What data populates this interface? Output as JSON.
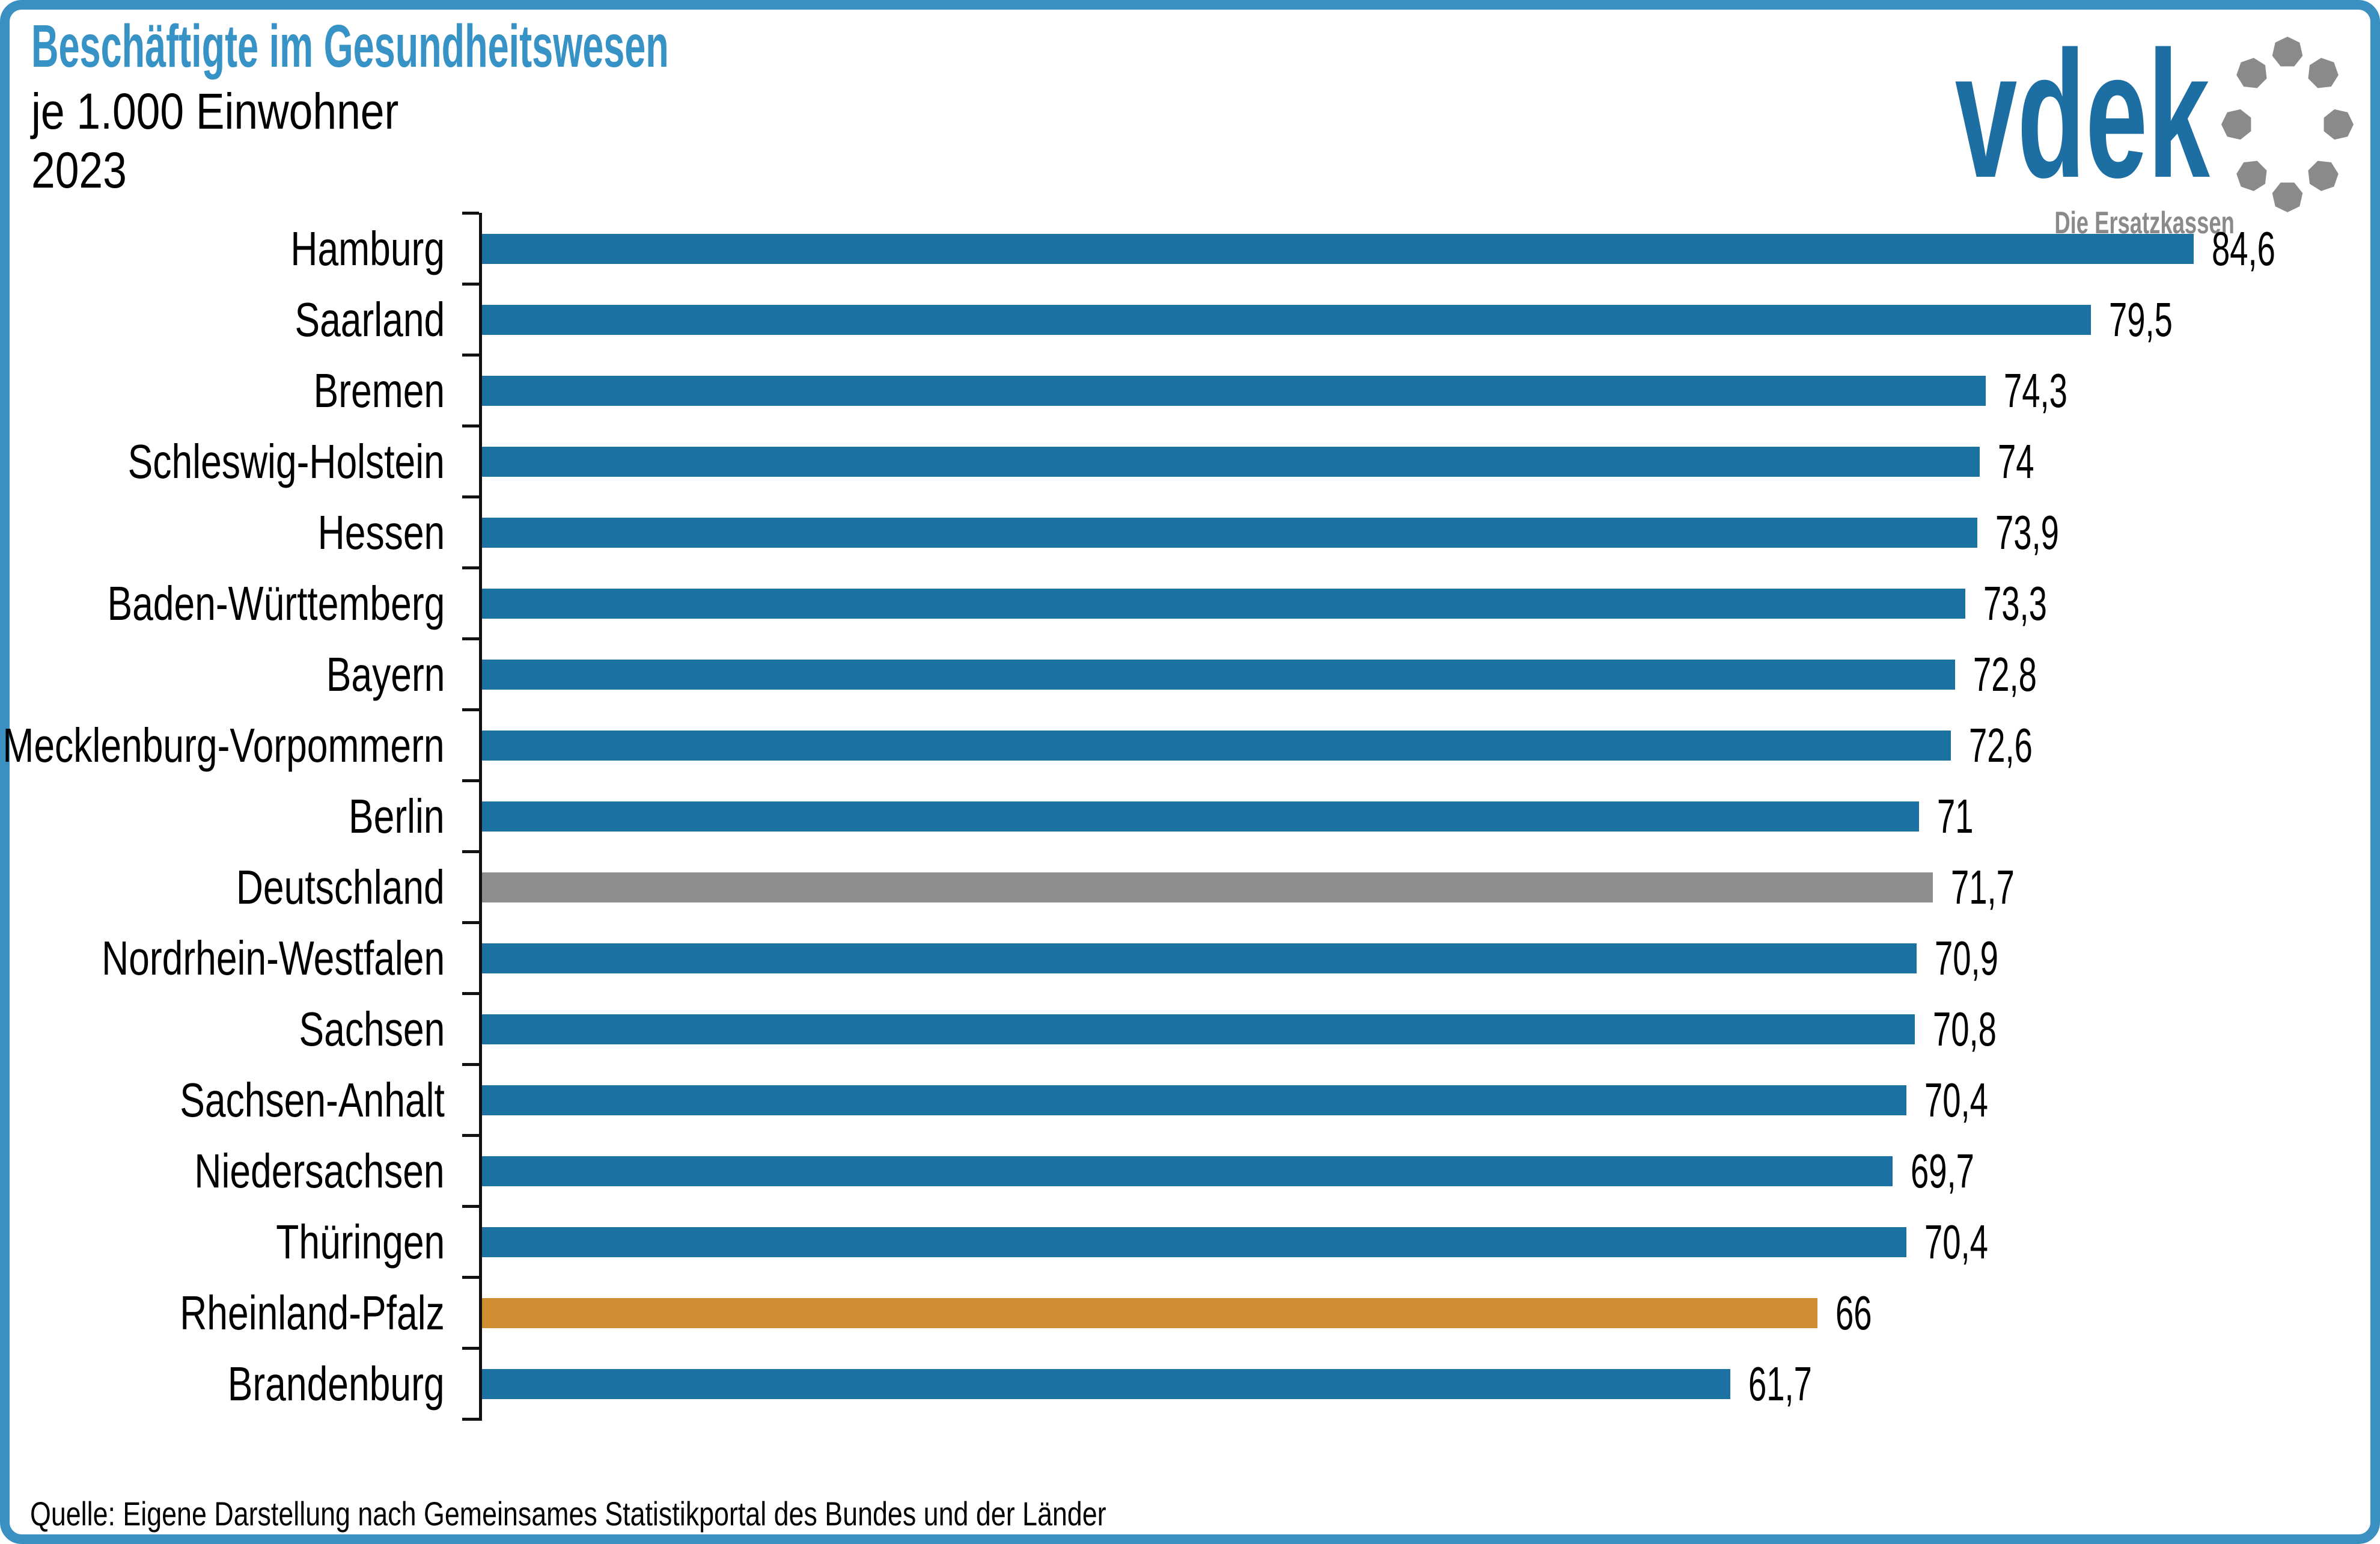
{
  "header": {
    "title_line1": "Beschäftigte im Gesundheitswesen",
    "title_line2": "je 1.000 Einwohner",
    "title_line3": "2023"
  },
  "logo": {
    "brand": "vdek",
    "tagline": "Die Ersatzkassen"
  },
  "chart_data": {
    "type": "bar",
    "orientation": "horizontal",
    "title": "Beschäftigte im Gesundheitswesen je 1.000 Einwohner",
    "year": "2023",
    "xlim": [
      0,
      88
    ],
    "grid": false,
    "legend": "none",
    "categories": [
      "Hamburg",
      "Saarland",
      "Bremen",
      "Schleswig-Holstein",
      "Hessen",
      "Baden-Württemberg",
      "Bayern",
      "Mecklenburg-Vorpommern",
      "Berlin",
      "Deutschland",
      "Nordrhein-Westfalen",
      "Sachsen",
      "Sachsen-Anhalt",
      "Niedersachsen",
      "Thüringen",
      "Rheinland-Pfalz",
      "Brandenburg"
    ],
    "values": [
      84.6,
      79.5,
      74.3,
      74,
      73.9,
      73.3,
      72.8,
      72.6,
      71,
      71.7,
      70.9,
      70.8,
      70.4,
      69.7,
      70.4,
      66,
      61.7
    ],
    "value_labels": [
      "84,6",
      "79,5",
      "74,3",
      "74",
      "73,9",
      "73,3",
      "72,8",
      "72,6",
      "71",
      "71,7",
      "70,9",
      "70,8",
      "70,4",
      "69,7",
      "70,4",
      "66",
      "61,7"
    ],
    "bar_roles": [
      "state",
      "state",
      "state",
      "state",
      "state",
      "state",
      "state",
      "state",
      "state",
      "germany",
      "state",
      "state",
      "state",
      "state",
      "state",
      "highlight",
      "state"
    ],
    "colors": {
      "state": "#1b71a2",
      "germany": "#8e8e8e",
      "highlight": "#d08c30"
    },
    "reference_category": "Deutschland",
    "highlighted_category": "Rheinland-Pfalz"
  },
  "source": {
    "text": "Quelle: Eigene Darstellung nach Gemeinsames Statistikportal des Bundes und der Länder"
  },
  "theme": {
    "frame_blue": "#3a90c1",
    "title_blue": "#3793c6",
    "brand_blue": "#1d6ea3",
    "logo_gray": "#8a8a8a",
    "text_black": "#000000"
  }
}
